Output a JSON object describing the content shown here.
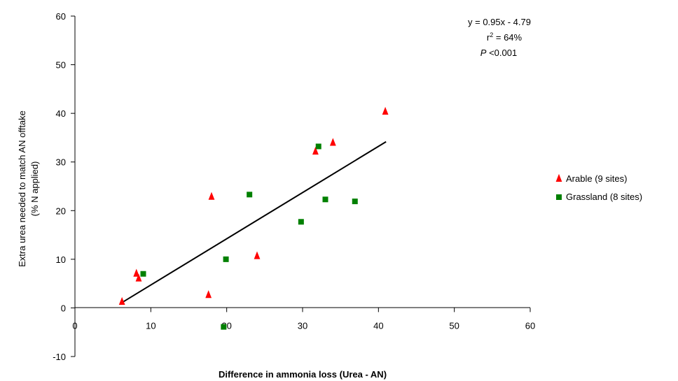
{
  "chart_data": {
    "type": "scatter",
    "title": "",
    "xlabel": "Difference in ammonia loss (Urea - AN)",
    "ylabel_line1": "Extra urea needed to match AN offtake",
    "ylabel_line2": "(% N applied)",
    "xlim": [
      0,
      60
    ],
    "ylim": [
      -10,
      60
    ],
    "x_ticks": [
      0,
      10,
      20,
      30,
      40,
      50,
      60
    ],
    "y_ticks": [
      -10,
      0,
      10,
      20,
      30,
      40,
      50,
      60
    ],
    "x_tick_labels": [
      "0",
      "10",
      "20",
      "30",
      "40",
      "50",
      "60"
    ],
    "y_tick_labels": [
      "-10",
      "0",
      "10",
      "20",
      "30",
      "40",
      "50",
      "60"
    ],
    "grid": false,
    "legend_position": "right",
    "series": [
      {
        "name": "Arable (9 sites)",
        "marker": "triangle",
        "color": "#ff0000",
        "points": [
          {
            "x": 6.2,
            "y": 1.2
          },
          {
            "x": 8.1,
            "y": 7.0
          },
          {
            "x": 8.4,
            "y": 6.0
          },
          {
            "x": 17.6,
            "y": 2.6
          },
          {
            "x": 18.0,
            "y": 22.8
          },
          {
            "x": 24.0,
            "y": 10.6
          },
          {
            "x": 31.7,
            "y": 32.1
          },
          {
            "x": 34.0,
            "y": 33.9
          },
          {
            "x": 40.9,
            "y": 40.3
          }
        ]
      },
      {
        "name": "Grassland (8 sites)",
        "marker": "square",
        "color": "#008000",
        "points": [
          {
            "x": 9.0,
            "y": 7.0
          },
          {
            "x": 19.6,
            "y": -3.9
          },
          {
            "x": 19.9,
            "y": 10.0
          },
          {
            "x": 23.0,
            "y": 23.3
          },
          {
            "x": 29.8,
            "y": 17.7
          },
          {
            "x": 32.1,
            "y": 33.2
          },
          {
            "x": 33.0,
            "y": 22.3
          },
          {
            "x": 36.9,
            "y": 21.9
          }
        ]
      }
    ],
    "trendline": {
      "slope": 0.95,
      "intercept": -4.79,
      "x_start": 6.1,
      "x_end": 41.0,
      "color": "#000000"
    },
    "annotations": {
      "equation": "y = 0.95x - 4.79",
      "r2_prefix": "r",
      "r2_sup": "2",
      "r2_value": " = 64%",
      "p_symbol": "P",
      "p_value": " <0.001"
    }
  }
}
